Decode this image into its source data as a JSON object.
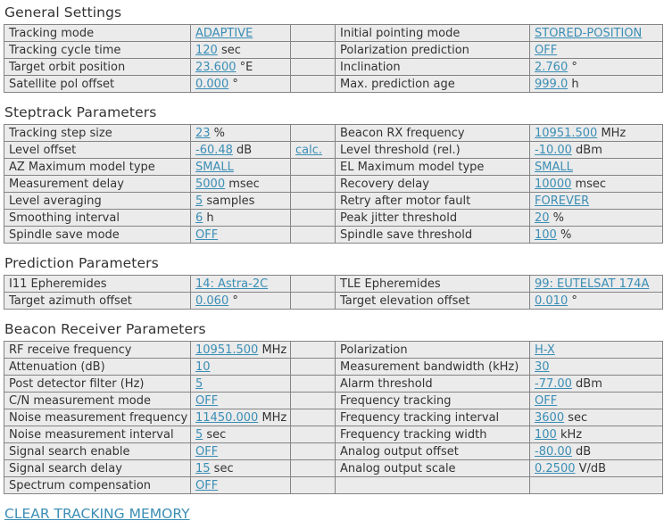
{
  "page": {
    "clear_link": "CLEAR TRACKING MEMORY"
  },
  "colors": {
    "link": "#3b8eb5",
    "cell_background": "#ebebeb",
    "cell_border": "#848484",
    "text": "#333333"
  },
  "sections": [
    {
      "title": "General Settings",
      "rows": [
        {
          "left": {
            "label": "Tracking mode",
            "value": "ADAPTIVE",
            "unit": ""
          },
          "extra": null,
          "right": {
            "label": "Initial pointing mode",
            "value": "STORED-POSITION",
            "unit": ""
          }
        },
        {
          "left": {
            "label": "Tracking cycle time",
            "value": "120",
            "unit": " sec"
          },
          "extra": null,
          "right": {
            "label": "Polarization prediction",
            "value": "OFF",
            "unit": ""
          }
        },
        {
          "left": {
            "label": "Target orbit position",
            "value": "23.600",
            "unit": " °E"
          },
          "extra": null,
          "right": {
            "label": "Inclination",
            "value": "2.760",
            "unit": " °"
          }
        },
        {
          "left": {
            "label": "Satellite pol offset",
            "value": "0.000",
            "unit": " °"
          },
          "extra": null,
          "right": {
            "label": "Max. prediction age",
            "value": "999.0",
            "unit": " h"
          }
        }
      ]
    },
    {
      "title": "Steptrack Parameters",
      "rows": [
        {
          "left": {
            "label": "Tracking step size",
            "value": "23",
            "unit": " %"
          },
          "extra": null,
          "right": {
            "label": "Beacon RX frequency",
            "value": "10951.500",
            "unit": " MHz"
          }
        },
        {
          "left": {
            "label": "Level offset",
            "value": "-60.48",
            "unit": " dB"
          },
          "extra": "calc.",
          "right": {
            "label": "Level threshold (rel.)",
            "value": "-10.00",
            "unit": " dBm"
          }
        },
        {
          "left": {
            "label": "AZ Maximum model type",
            "value": "SMALL",
            "unit": ""
          },
          "extra": null,
          "right": {
            "label": "EL Maximum model type",
            "value": "SMALL",
            "unit": ""
          }
        },
        {
          "left": {
            "label": "Measurement delay",
            "value": "5000",
            "unit": " msec"
          },
          "extra": null,
          "right": {
            "label": "Recovery delay",
            "value": "10000",
            "unit": " msec"
          }
        },
        {
          "left": {
            "label": "Level averaging",
            "value": "5",
            "unit": " samples"
          },
          "extra": null,
          "right": {
            "label": "Retry after motor fault",
            "value": "FOREVER",
            "unit": ""
          }
        },
        {
          "left": {
            "label": "Smoothing interval",
            "value": "6",
            "unit": " h"
          },
          "extra": null,
          "right": {
            "label": "Peak jitter threshold",
            "value": "20",
            "unit": " %"
          }
        },
        {
          "left": {
            "label": "Spindle save mode",
            "value": "OFF",
            "unit": ""
          },
          "extra": null,
          "right": {
            "label": "Spindle save threshold",
            "value": "100",
            "unit": " %"
          }
        }
      ]
    },
    {
      "title": "Prediction Parameters",
      "rows": [
        {
          "left": {
            "label": "I11 Epheremides",
            "value": "14: Astra-2C",
            "unit": ""
          },
          "extra": null,
          "right": {
            "label": "TLE Epheremides",
            "value": "99: EUTELSAT 174A",
            "unit": ""
          }
        },
        {
          "left": {
            "label": "Target azimuth offset",
            "value": "0.060",
            "unit": " °"
          },
          "extra": null,
          "right": {
            "label": "Target elevation offset",
            "value": "0.010",
            "unit": " °"
          }
        }
      ]
    },
    {
      "title": "Beacon Receiver Parameters",
      "rows": [
        {
          "left": {
            "label": "RF receive frequency",
            "value": "10951.500",
            "unit": " MHz"
          },
          "extra": null,
          "right": {
            "label": "Polarization",
            "value": "H-X",
            "unit": ""
          }
        },
        {
          "left": {
            "label": "Attenuation (dB)",
            "value": "10",
            "unit": ""
          },
          "extra": null,
          "right": {
            "label": "Measurement bandwidth (kHz)",
            "value": "30",
            "unit": ""
          }
        },
        {
          "left": {
            "label": "Post detector filter (Hz)",
            "value": "5",
            "unit": ""
          },
          "extra": null,
          "right": {
            "label": "Alarm threshold",
            "value": "-77.00",
            "unit": " dBm"
          }
        },
        {
          "left": {
            "label": "C/N measurement mode",
            "value": "OFF",
            "unit": ""
          },
          "extra": null,
          "right": {
            "label": "Frequency tracking",
            "value": "OFF",
            "unit": ""
          }
        },
        {
          "left": {
            "label": "Noise measurement frequency",
            "value": "11450.000",
            "unit": " MHz"
          },
          "extra": null,
          "right": {
            "label": "Frequency tracking interval",
            "value": "3600",
            "unit": " sec"
          }
        },
        {
          "left": {
            "label": "Noise measurement interval",
            "value": "5",
            "unit": " sec"
          },
          "extra": null,
          "right": {
            "label": "Frequency tracking width",
            "value": "100",
            "unit": " kHz"
          }
        },
        {
          "left": {
            "label": "Signal search enable",
            "value": "OFF",
            "unit": ""
          },
          "extra": null,
          "right": {
            "label": "Analog output offset",
            "value": "-80.00",
            "unit": " dB"
          }
        },
        {
          "left": {
            "label": "Signal search delay",
            "value": "15",
            "unit": " sec"
          },
          "extra": null,
          "right": {
            "label": "Analog output scale",
            "value": "0.2500",
            "unit": " V/dB"
          }
        },
        {
          "left": {
            "label": "Spectrum compensation",
            "value": "OFF",
            "unit": ""
          },
          "extra": null,
          "right": {
            "label": "",
            "value": null,
            "unit": ""
          }
        }
      ]
    }
  ]
}
